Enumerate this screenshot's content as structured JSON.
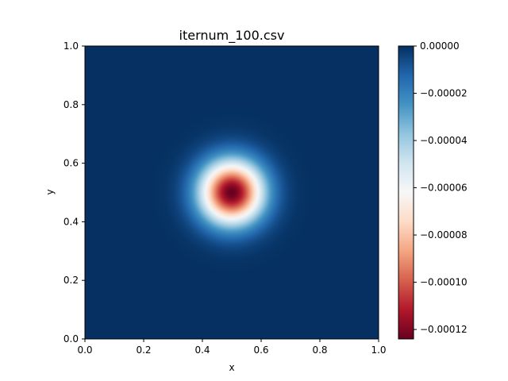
{
  "chart_data": {
    "type": "heatmap",
    "title": "iternum_100.csv",
    "xlabel": "x",
    "ylabel": "y",
    "xlim": [
      0.0,
      1.0
    ],
    "ylim": [
      0.0,
      1.0
    ],
    "x_ticks": [
      "0.0",
      "0.2",
      "0.4",
      "0.6",
      "0.8",
      "1.0"
    ],
    "y_ticks": [
      "0.0",
      "0.2",
      "0.4",
      "0.6",
      "0.8",
      "1.0"
    ],
    "colormap": "RdBu",
    "colormap_stops": [
      "#67001f",
      "#b2182b",
      "#d6604d",
      "#f4a582",
      "#fddbc7",
      "#f7f7f7",
      "#d1e5f0",
      "#92c5de",
      "#4393c3",
      "#2166ac",
      "#053061"
    ],
    "value_range": [
      -0.000124,
      0.0
    ],
    "field": {
      "shape": "gaussian",
      "center": [
        0.5,
        0.5
      ],
      "sigma": 0.075,
      "amplitude": -0.000124
    },
    "colorbar": {
      "ticks": [
        "0.00000",
        "−0.00002",
        "−0.00004",
        "−0.00006",
        "−0.00008",
        "−0.00010",
        "−0.00012"
      ],
      "tick_values": [
        0.0,
        -2e-05,
        -4e-05,
        -6e-05,
        -8e-05,
        -0.0001,
        -0.00012
      ]
    },
    "grid": false
  }
}
